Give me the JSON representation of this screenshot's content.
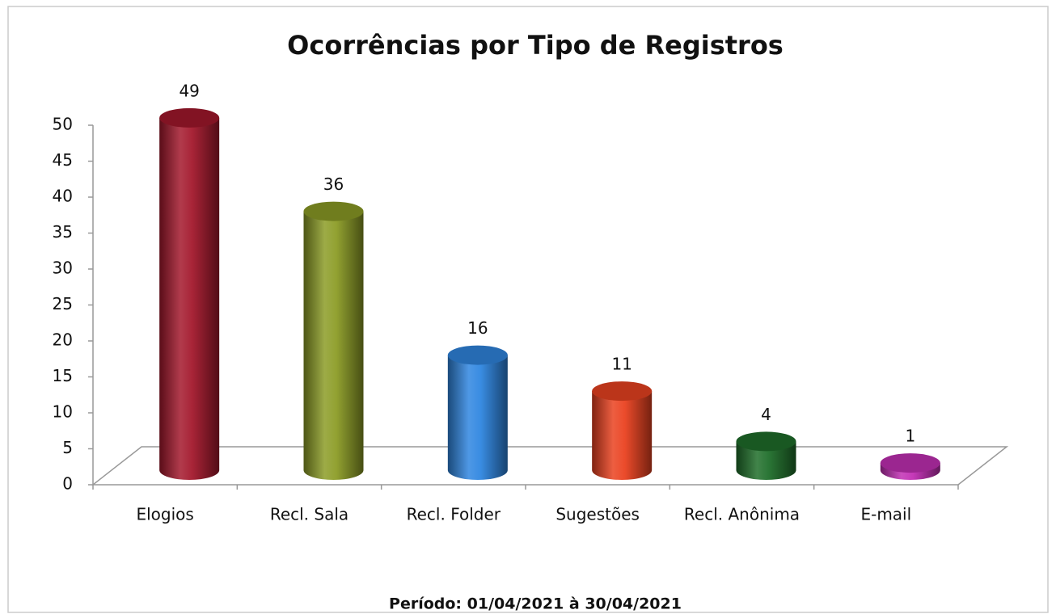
{
  "chart_data": {
    "type": "bar3d",
    "title": "Ocorrências por Tipo de Registros",
    "footer": "Período: 01/04/2021 à 30/04/2021",
    "categories": [
      "Elogios",
      "Recl. Sala",
      "Recl. Folder",
      "Sugestões",
      "Recl. Anônima",
      "E-mail"
    ],
    "values": [
      49,
      36,
      16,
      11,
      4,
      1
    ],
    "colors": [
      "#a3182c",
      "#8c9c26",
      "#2f86e0",
      "#ea4220",
      "#1f6e2a",
      "#c22fb4"
    ],
    "ylim": [
      0,
      50
    ],
    "yticks": [
      0,
      5,
      10,
      15,
      20,
      25,
      30,
      35,
      40,
      45,
      50
    ]
  }
}
